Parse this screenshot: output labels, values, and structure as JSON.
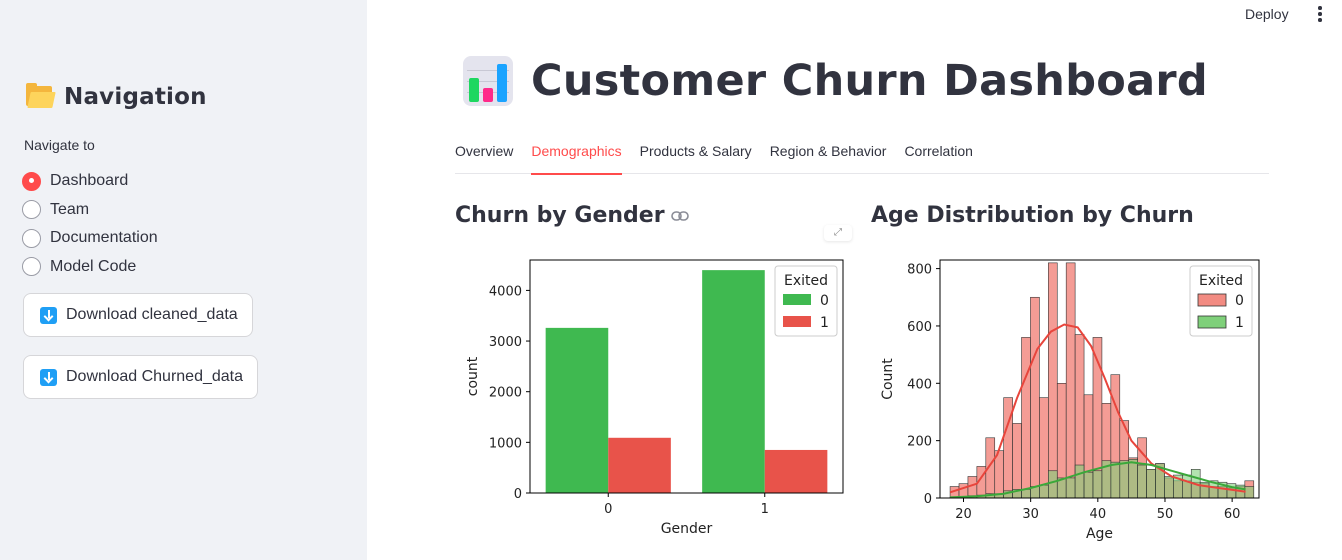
{
  "topbar": {
    "deploy_label": "Deploy",
    "menu_icon": "kebab-menu-icon"
  },
  "sidebar": {
    "title": "Navigation",
    "title_icon": "folder-icon",
    "radio_label": "Navigate to",
    "options": [
      {
        "label": "Dashboard",
        "selected": true
      },
      {
        "label": "Team",
        "selected": false
      },
      {
        "label": "Documentation",
        "selected": false
      },
      {
        "label": "Model Code",
        "selected": false
      }
    ],
    "buttons": [
      {
        "label": "Download cleaned_data",
        "icon": "download-icon"
      },
      {
        "label": "Download Churned_data",
        "icon": "download-icon"
      }
    ]
  },
  "main": {
    "title": "Customer Churn Dashboard",
    "title_icon": "bar-chart-icon",
    "tabs": [
      {
        "label": "Overview",
        "active": false
      },
      {
        "label": "Demographics",
        "active": true
      },
      {
        "label": "Products & Salary",
        "active": false
      },
      {
        "label": "Region & Behavior",
        "active": false
      },
      {
        "label": "Correlation",
        "active": false
      }
    ],
    "accent_color": "#ff4b4b"
  },
  "chart_data": [
    {
      "type": "bar",
      "title": "Churn by Gender",
      "xlabel": "Gender",
      "ylabel": "count",
      "categories": [
        "0",
        "1"
      ],
      "ylim": [
        0,
        4600
      ],
      "yticks": [
        0,
        1000,
        2000,
        3000,
        4000
      ],
      "legend": {
        "title": "Exited",
        "placement": "top-right"
      },
      "series": [
        {
          "name": "0",
          "color": "#3fb950",
          "values": [
            3260,
            4400
          ]
        },
        {
          "name": "1",
          "color": "#e8534a",
          "values": [
            1090,
            850
          ]
        }
      ]
    },
    {
      "type": "histogram",
      "title": "Age Distribution by Churn",
      "xlabel": "Age",
      "ylabel": "Count",
      "xlim": [
        16.5,
        64
      ],
      "ylim": [
        0,
        830
      ],
      "xticks": [
        20,
        30,
        40,
        50,
        60
      ],
      "yticks": [
        0,
        200,
        400,
        600,
        800
      ],
      "bin_start": 18,
      "bin_width": 1.33,
      "legend": {
        "title": "Exited",
        "placement": "top-right"
      },
      "series": [
        {
          "name": "0",
          "color": "#f28b82",
          "kde_color": "#e8453c",
          "values": [
            40,
            50,
            75,
            110,
            210,
            165,
            350,
            260,
            560,
            700,
            350,
            820,
            400,
            820,
            570,
            360,
            560,
            330,
            430,
            270,
            140,
            210,
            100,
            120,
            70,
            60,
            60,
            55,
            50,
            40,
            40,
            35,
            40,
            60
          ],
          "kde": [
            [
              18,
              20
            ],
            [
              22,
              50
            ],
            [
              25,
              150
            ],
            [
              28,
              350
            ],
            [
              31,
              520
            ],
            [
              33,
              580
            ],
            [
              35,
              605
            ],
            [
              37,
              595
            ],
            [
              39,
              530
            ],
            [
              41,
              420
            ],
            [
              43,
              300
            ],
            [
              45,
              200
            ],
            [
              48,
              120
            ],
            [
              51,
              75
            ],
            [
              55,
              45
            ],
            [
              58,
              35
            ],
            [
              61,
              25
            ],
            [
              62,
              22
            ]
          ]
        },
        {
          "name": "1",
          "color": "#7fd07a",
          "kde_color": "#3aa83a",
          "values": [
            3,
            5,
            8,
            10,
            15,
            15,
            25,
            30,
            30,
            40,
            45,
            95,
            70,
            70,
            115,
            90,
            95,
            130,
            125,
            130,
            135,
            115,
            100,
            120,
            75,
            80,
            80,
            100,
            55,
            60,
            55,
            50,
            45,
            40
          ],
          "kde": [
            [
              18,
              2
            ],
            [
              22,
              6
            ],
            [
              26,
              15
            ],
            [
              30,
              35
            ],
            [
              34,
              60
            ],
            [
              38,
              90
            ],
            [
              42,
              115
            ],
            [
              45,
              125
            ],
            [
              48,
              115
            ],
            [
              51,
              95
            ],
            [
              54,
              75
            ],
            [
              57,
              55
            ],
            [
              60,
              38
            ],
            [
              62,
              30
            ]
          ]
        }
      ]
    }
  ]
}
